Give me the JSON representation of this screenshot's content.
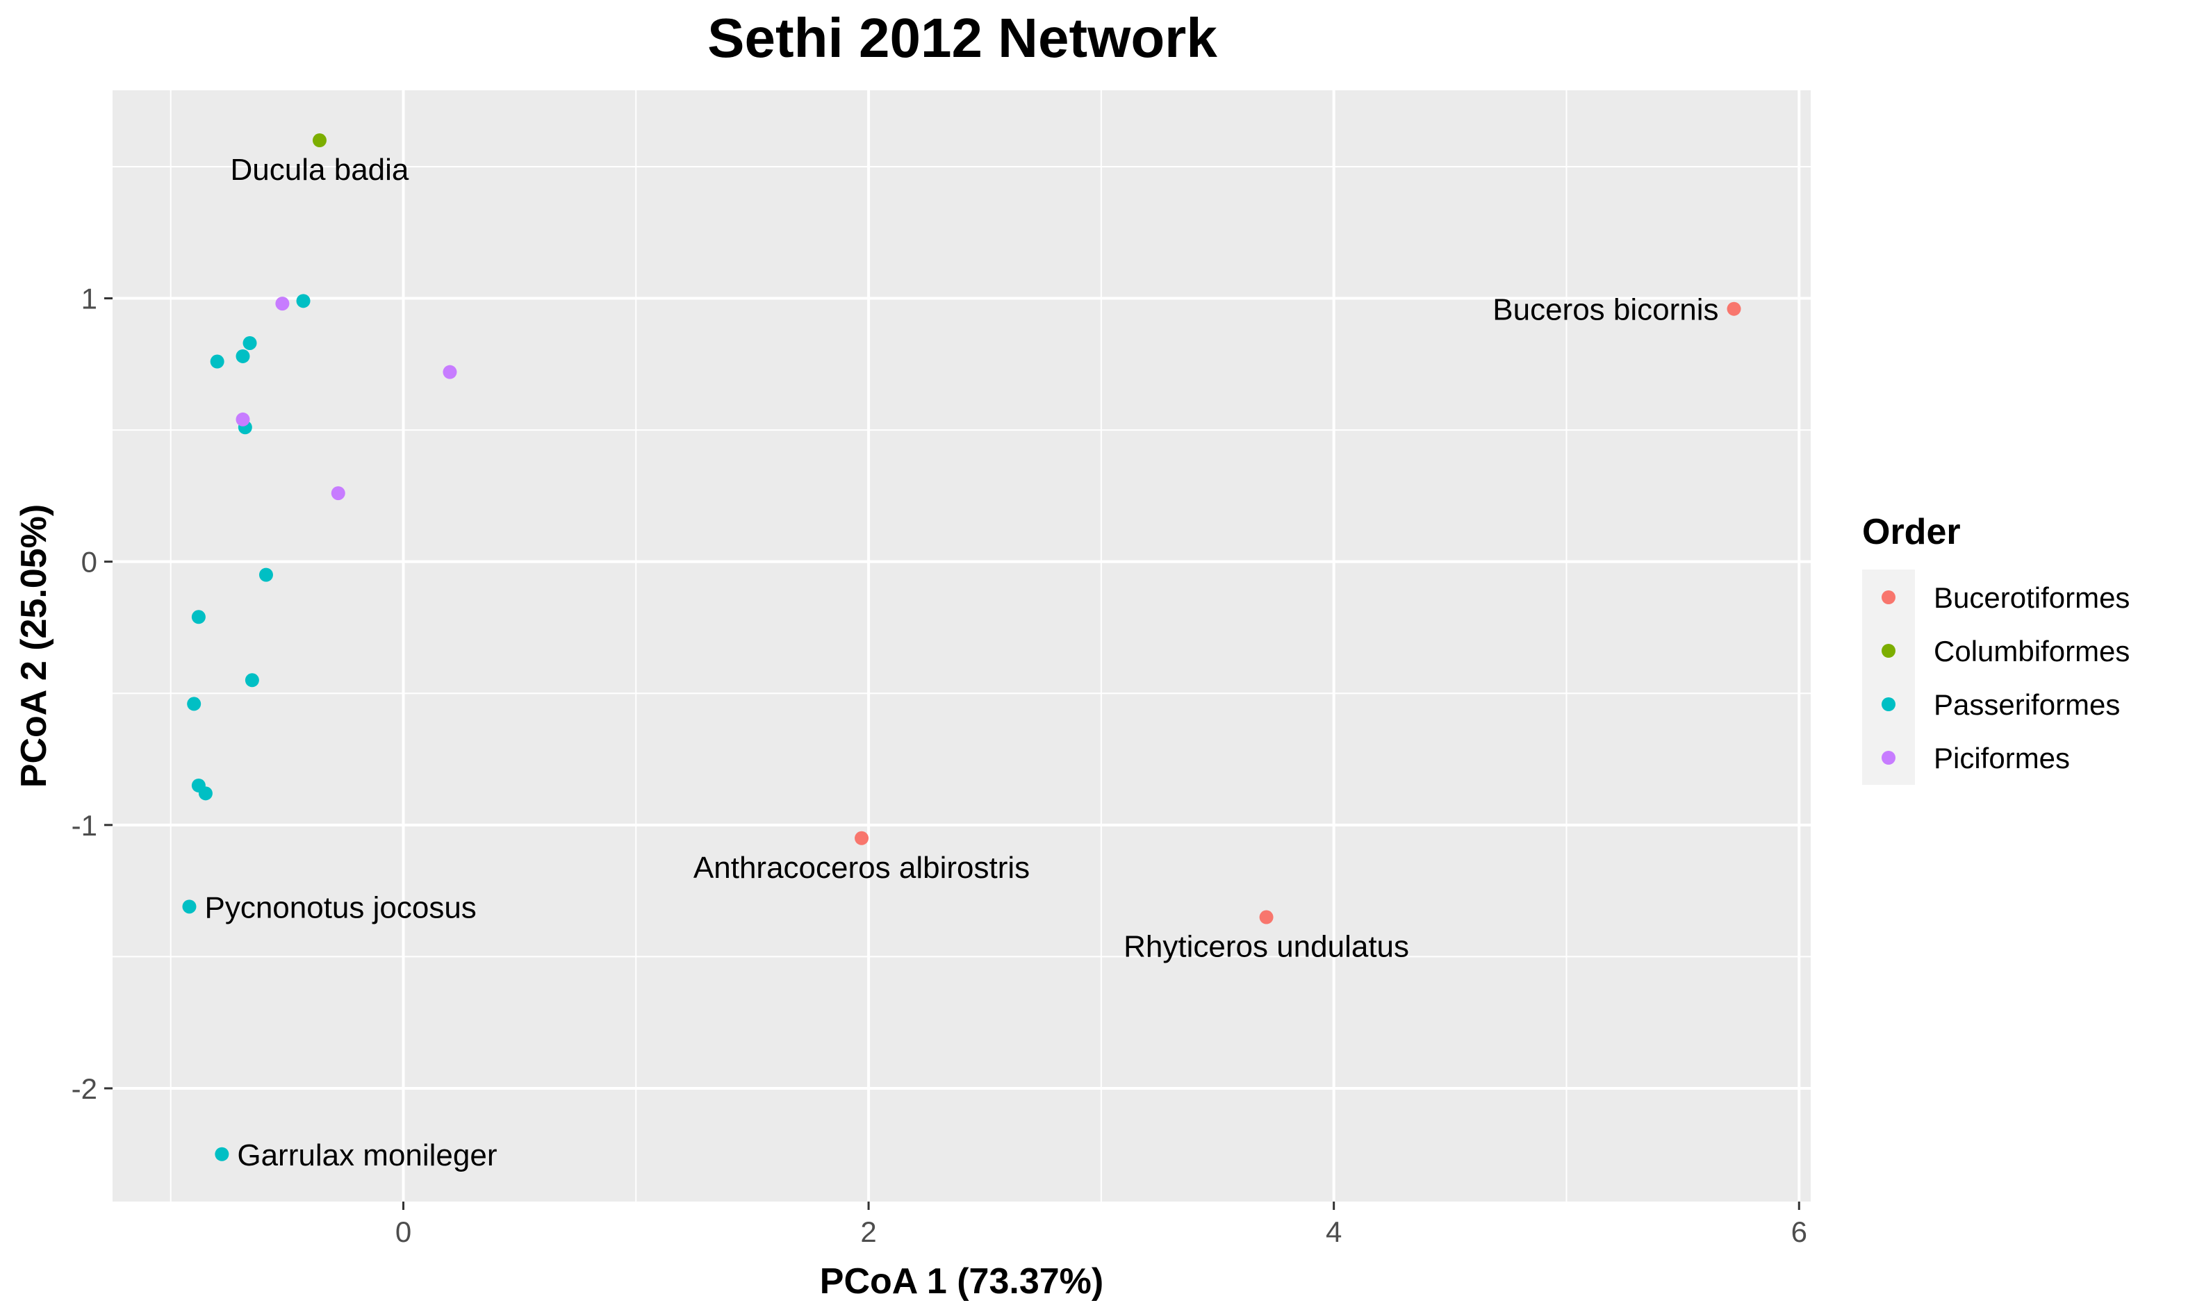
{
  "chart_data": {
    "type": "scatter",
    "title": "Sethi 2012 Network",
    "xlabel": "PCoA 1 (73.37%)",
    "ylabel": "PCoA 2 (25.05%)",
    "xlim": [
      -1.25,
      6.05
    ],
    "ylim": [
      -2.43,
      1.79
    ],
    "x_ticks": [
      0,
      2,
      4,
      6
    ],
    "y_ticks": [
      -2,
      -1,
      0,
      1
    ],
    "grid": true,
    "panel_background": "#ebebeb",
    "legend": {
      "title": "Order",
      "placement": "right",
      "entries": [
        {
          "name": "Bucerotiformes",
          "color": "#f8766d"
        },
        {
          "name": "Columbiformes",
          "color": "#7cae00"
        },
        {
          "name": "Passeriformes",
          "color": "#00bfc4"
        },
        {
          "name": "Piciformes",
          "color": "#c77cff"
        }
      ]
    },
    "points": [
      {
        "x": 5.72,
        "y": 0.96,
        "order": "Bucerotiformes",
        "label": "Buceros bicornis"
      },
      {
        "x": 1.97,
        "y": -1.05,
        "order": "Bucerotiformes",
        "label": "Anthracoceros albirostris"
      },
      {
        "x": 3.71,
        "y": -1.35,
        "order": "Bucerotiformes",
        "label": "Rhyticeros undulatus"
      },
      {
        "x": -0.36,
        "y": 1.6,
        "order": "Columbiformes",
        "label": "Ducula badia"
      },
      {
        "x": -0.43,
        "y": 0.99,
        "order": "Passeriformes",
        "label": ""
      },
      {
        "x": -0.66,
        "y": 0.83,
        "order": "Passeriformes",
        "label": ""
      },
      {
        "x": -0.69,
        "y": 0.78,
        "order": "Passeriformes",
        "label": ""
      },
      {
        "x": -0.8,
        "y": 0.76,
        "order": "Passeriformes",
        "label": ""
      },
      {
        "x": -0.68,
        "y": 0.51,
        "order": "Passeriformes",
        "label": ""
      },
      {
        "x": -0.59,
        "y": -0.05,
        "order": "Passeriformes",
        "label": ""
      },
      {
        "x": -0.88,
        "y": -0.21,
        "order": "Passeriformes",
        "label": ""
      },
      {
        "x": -0.65,
        "y": -0.45,
        "order": "Passeriformes",
        "label": ""
      },
      {
        "x": -0.9,
        "y": -0.54,
        "order": "Passeriformes",
        "label": ""
      },
      {
        "x": -0.88,
        "y": -0.85,
        "order": "Passeriformes",
        "label": ""
      },
      {
        "x": -0.85,
        "y": -0.88,
        "order": "Passeriformes",
        "label": ""
      },
      {
        "x": -0.92,
        "y": -1.31,
        "order": "Passeriformes",
        "label": "Pycnonotus jocosus"
      },
      {
        "x": -0.78,
        "y": -2.25,
        "order": "Passeriformes",
        "label": "Garrulax monileger"
      },
      {
        "x": -0.52,
        "y": 0.98,
        "order": "Piciformes",
        "label": ""
      },
      {
        "x": -0.69,
        "y": 0.54,
        "order": "Piciformes",
        "label": ""
      },
      {
        "x": 0.2,
        "y": 0.72,
        "order": "Piciformes",
        "label": ""
      },
      {
        "x": -0.28,
        "y": 0.26,
        "order": "Piciformes",
        "label": ""
      }
    ]
  }
}
